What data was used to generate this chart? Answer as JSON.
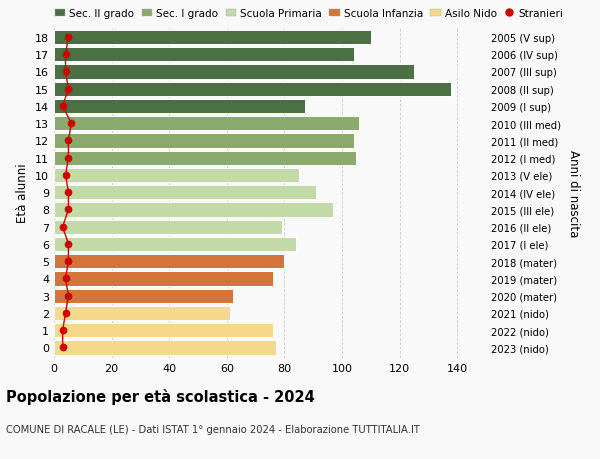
{
  "ages": [
    18,
    17,
    16,
    15,
    14,
    13,
    12,
    11,
    10,
    9,
    8,
    7,
    6,
    5,
    4,
    3,
    2,
    1,
    0
  ],
  "values": [
    110,
    104,
    125,
    138,
    87,
    106,
    104,
    105,
    85,
    91,
    97,
    79,
    84,
    80,
    76,
    62,
    61,
    76,
    77
  ],
  "stranieri": [
    5,
    4,
    4,
    5,
    3,
    6,
    5,
    5,
    4,
    5,
    5,
    3,
    5,
    5,
    4,
    5,
    4,
    3,
    3
  ],
  "right_labels": [
    "2005 (V sup)",
    "2006 (IV sup)",
    "2007 (III sup)",
    "2008 (II sup)",
    "2009 (I sup)",
    "2010 (III med)",
    "2011 (II med)",
    "2012 (I med)",
    "2013 (V ele)",
    "2014 (IV ele)",
    "2015 (III ele)",
    "2016 (II ele)",
    "2017 (I ele)",
    "2018 (mater)",
    "2019 (mater)",
    "2020 (mater)",
    "2021 (nido)",
    "2022 (nido)",
    "2023 (nido)"
  ],
  "bar_colors": [
    "#4a7043",
    "#4a7043",
    "#4a7043",
    "#4a7043",
    "#4a7043",
    "#8aaa6e",
    "#8aaa6e",
    "#8aaa6e",
    "#c2d9a8",
    "#c2d9a8",
    "#c2d9a8",
    "#c2d9a8",
    "#c2d9a8",
    "#d4733a",
    "#d4733a",
    "#d4733a",
    "#f5d98b",
    "#f5d98b",
    "#f5d98b"
  ],
  "legend_labels": [
    "Sec. II grado",
    "Sec. I grado",
    "Scuola Primaria",
    "Scuola Infanzia",
    "Asilo Nido",
    "Stranieri"
  ],
  "legend_colors": [
    "#4a7043",
    "#8aaa6e",
    "#c2d9a8",
    "#d4733a",
    "#f5d98b",
    "#cc0000"
  ],
  "xlabel_vals": [
    0,
    20,
    40,
    60,
    80,
    100,
    120,
    140
  ],
  "xlim": [
    0,
    150
  ],
  "ylabel_left": "Età alunni",
  "ylabel_right": "Anni di nascita",
  "title": "Popolazione per età scolastica - 2024",
  "subtitle": "COMUNE DI RACALE (LE) - Dati ISTAT 1° gennaio 2024 - Elaborazione TUTTITALIA.IT",
  "background_color": "#f9f9f9",
  "stranieri_color": "#cc0000",
  "bar_height": 0.82
}
